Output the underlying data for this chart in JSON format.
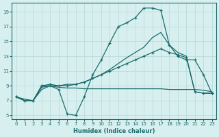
{
  "xlabel": "Humidex (Indice chaleur)",
  "xlim": [
    -0.5,
    23.5
  ],
  "ylim": [
    4.5,
    20.2
  ],
  "yticks": [
    5,
    7,
    9,
    11,
    13,
    15,
    17,
    19
  ],
  "xticks": [
    0,
    1,
    2,
    3,
    4,
    5,
    6,
    7,
    8,
    9,
    10,
    11,
    12,
    13,
    14,
    15,
    16,
    17,
    18,
    19,
    20,
    21,
    22,
    23
  ],
  "background_color": "#d8efef",
  "grid_color": "#b8d8d8",
  "line_color": "#1a6b6b",
  "line1_x": [
    0,
    1,
    2,
    3,
    4,
    5,
    6,
    7,
    8,
    9,
    10,
    11,
    12,
    13,
    14,
    15,
    16,
    17,
    18,
    19,
    20,
    21,
    22,
    23
  ],
  "line1_y": [
    7.5,
    7.0,
    7.0,
    9.0,
    9.0,
    8.5,
    5.2,
    5.0,
    7.5,
    10.5,
    12.5,
    14.8,
    17.0,
    17.5,
    18.2,
    19.5,
    19.5,
    19.2,
    14.5,
    13.0,
    12.5,
    12.5,
    10.5,
    8.0
  ],
  "line2_x": [
    0,
    1,
    2,
    3,
    4,
    5,
    6,
    7,
    8,
    9,
    10,
    11,
    12,
    13,
    14,
    15,
    16,
    17,
    18,
    19,
    20,
    21,
    22,
    23
  ],
  "line2_y": [
    7.5,
    7.0,
    7.0,
    9.0,
    9.2,
    9.0,
    9.0,
    9.2,
    9.5,
    10.0,
    10.5,
    11.0,
    11.5,
    12.0,
    12.5,
    13.0,
    13.5,
    14.0,
    13.5,
    13.2,
    12.8,
    8.2,
    8.0,
    8.0
  ],
  "line3_x": [
    0,
    1,
    2,
    3,
    4,
    5,
    6,
    7,
    8,
    9,
    10,
    11,
    12,
    13,
    14,
    15,
    16,
    17,
    18,
    19,
    20,
    21,
    22,
    23
  ],
  "line3_y": [
    7.5,
    7.2,
    7.0,
    8.8,
    9.0,
    8.8,
    8.7,
    8.7,
    8.6,
    8.6,
    8.6,
    8.6,
    8.6,
    8.6,
    8.6,
    8.6,
    8.6,
    8.6,
    8.5,
    8.5,
    8.5,
    8.5,
    8.4,
    8.2
  ],
  "line4_x": [
    0,
    1,
    2,
    3,
    4,
    5,
    6,
    7,
    8,
    9,
    10,
    11,
    12,
    13,
    14,
    15,
    16,
    17,
    18,
    19,
    20,
    21,
    22,
    23
  ],
  "line4_y": [
    7.5,
    7.0,
    7.0,
    8.5,
    9.0,
    9.0,
    9.2,
    9.2,
    9.5,
    10.0,
    10.5,
    11.2,
    12.0,
    12.8,
    13.5,
    14.2,
    15.5,
    16.2,
    14.5,
    13.5,
    13.0,
    8.2,
    8.0,
    8.0
  ]
}
